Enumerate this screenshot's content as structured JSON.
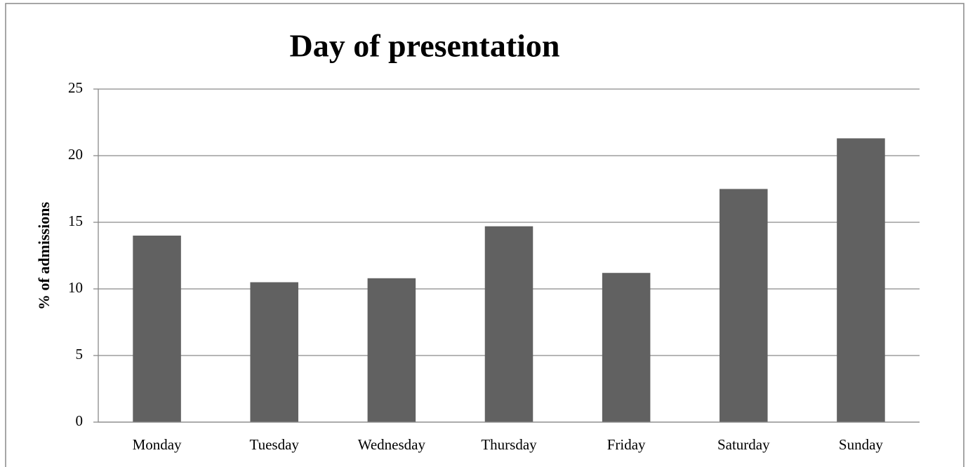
{
  "chart_data": {
    "type": "bar",
    "title": "Day of presentation",
    "y_label": "% of admissions",
    "categories": [
      "Monday",
      "Tuesday",
      "Wednesday",
      "Thursday",
      "Friday",
      "Saturday",
      "Sunday"
    ],
    "values": [
      14.0,
      10.5,
      10.8,
      14.7,
      11.2,
      17.5,
      21.3
    ],
    "color": "#616161",
    "ylim": [
      0,
      25
    ],
    "yticks": [
      0,
      5,
      10,
      15,
      20,
      25
    ],
    "grid": true
  }
}
